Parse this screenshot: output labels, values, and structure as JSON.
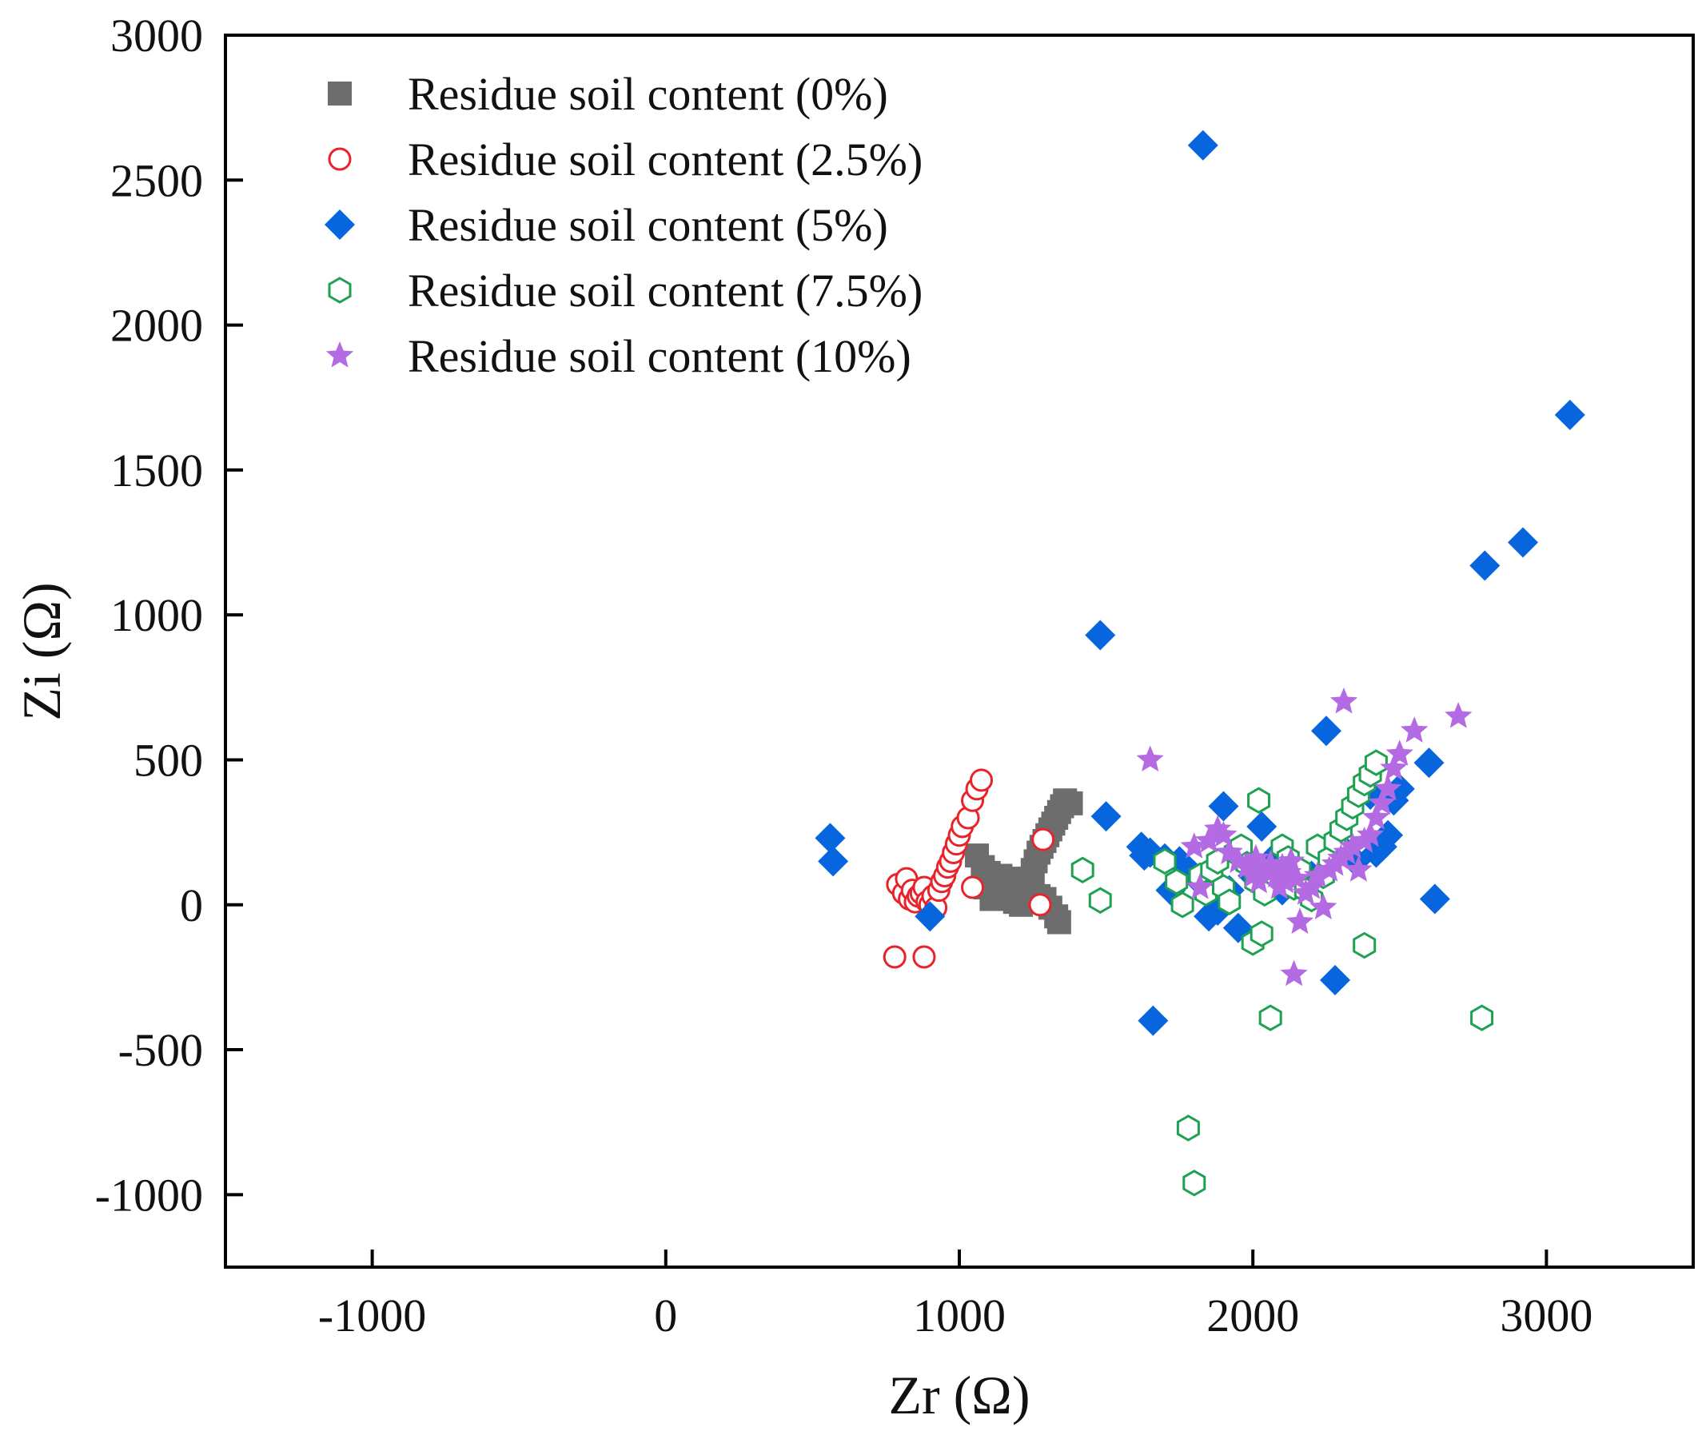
{
  "chart_data": {
    "type": "scatter",
    "title": "",
    "xlabel": "Zr (Ω)",
    "ylabel": "Zi (Ω)",
    "xlim": [
      -1500,
      3500
    ],
    "ylim": [
      -1250,
      3000
    ],
    "xticks": [
      -1000,
      0,
      1000,
      2000,
      3000
    ],
    "xtick_labels": [
      "-1000",
      "0",
      "1000",
      "2000",
      "3000"
    ],
    "yticks": [
      -1000,
      -500,
      0,
      500,
      1000,
      1500,
      2000,
      2500,
      3000
    ],
    "ytick_labels": [
      "-1000",
      "-500",
      "0",
      "500",
      "1000",
      "1500",
      "2000",
      "2500",
      "3000"
    ],
    "grid": false,
    "legend_position": "top-left",
    "series": [
      {
        "name": "Residue soil content (0%)",
        "marker": "square",
        "color": "#6d6d6d",
        "filled": true,
        "points": [
          [
            1060,
            170
          ],
          [
            1080,
            130
          ],
          [
            1100,
            110
          ],
          [
            1110,
            80
          ],
          [
            1120,
            60
          ],
          [
            1130,
            40
          ],
          [
            1150,
            30
          ],
          [
            1170,
            20
          ],
          [
            1190,
            10
          ],
          [
            1210,
            0
          ],
          [
            1220,
            30
          ],
          [
            1230,
            60
          ],
          [
            1240,
            90
          ],
          [
            1250,
            120
          ],
          [
            1260,
            150
          ],
          [
            1270,
            180
          ],
          [
            1280,
            200
          ],
          [
            1290,
            220
          ],
          [
            1300,
            240
          ],
          [
            1310,
            260
          ],
          [
            1320,
            280
          ],
          [
            1330,
            300
          ],
          [
            1340,
            320
          ],
          [
            1350,
            340
          ],
          [
            1360,
            360
          ],
          [
            1380,
            350
          ],
          [
            1250,
            40
          ],
          [
            1270,
            30
          ],
          [
            1290,
            20
          ],
          [
            1310,
            -10
          ],
          [
            1330,
            -40
          ],
          [
            1340,
            -60
          ],
          [
            1090,
            60
          ],
          [
            1110,
            20
          ],
          [
            1180,
            50
          ],
          [
            1200,
            90
          ],
          [
            1140,
            100
          ]
        ]
      },
      {
        "name": "Residue soil content (2.5%)",
        "marker": "circle",
        "color": "#e8232b",
        "filled": false,
        "points": [
          [
            780,
            -180
          ],
          [
            880,
            -180
          ],
          [
            790,
            70
          ],
          [
            810,
            40
          ],
          [
            820,
            90
          ],
          [
            830,
            20
          ],
          [
            840,
            50
          ],
          [
            850,
            10
          ],
          [
            860,
            30
          ],
          [
            870,
            40
          ],
          [
            880,
            60
          ],
          [
            890,
            10
          ],
          [
            900,
            0
          ],
          [
            910,
            30
          ],
          [
            920,
            -10
          ],
          [
            930,
            50
          ],
          [
            940,
            80
          ],
          [
            950,
            100
          ],
          [
            960,
            130
          ],
          [
            970,
            150
          ],
          [
            980,
            180
          ],
          [
            990,
            210
          ],
          [
            1000,
            240
          ],
          [
            1010,
            270
          ],
          [
            1030,
            300
          ],
          [
            1045,
            360
          ],
          [
            1060,
            400
          ],
          [
            1075,
            430
          ],
          [
            1045,
            60
          ],
          [
            1275,
            0
          ],
          [
            1285,
            225
          ]
        ]
      },
      {
        "name": "Residue soil content (5%)",
        "marker": "diamond",
        "color": "#0766dd",
        "filled": true,
        "points": [
          [
            560,
            230
          ],
          [
            570,
            150
          ],
          [
            900,
            -40
          ],
          [
            1480,
            930
          ],
          [
            1500,
            305
          ],
          [
            1620,
            200
          ],
          [
            1630,
            170
          ],
          [
            1650,
            180
          ],
          [
            1660,
            -400
          ],
          [
            1700,
            160
          ],
          [
            1720,
            50
          ],
          [
            1750,
            150
          ],
          [
            1800,
            100
          ],
          [
            1830,
            2620
          ],
          [
            1850,
            -40
          ],
          [
            1880,
            -20
          ],
          [
            1900,
            340
          ],
          [
            1920,
            50
          ],
          [
            1950,
            -80
          ],
          [
            2000,
            100
          ],
          [
            2030,
            270
          ],
          [
            2060,
            150
          ],
          [
            2100,
            50
          ],
          [
            2150,
            80
          ],
          [
            2200,
            100
          ],
          [
            2250,
            600
          ],
          [
            2280,
            -260
          ],
          [
            2300,
            200
          ],
          [
            2350,
            150
          ],
          [
            2400,
            380
          ],
          [
            2420,
            180
          ],
          [
            2440,
            200
          ],
          [
            2460,
            240
          ],
          [
            2480,
            360
          ],
          [
            2500,
            400
          ],
          [
            2600,
            490
          ],
          [
            2620,
            20
          ],
          [
            2790,
            1170
          ],
          [
            2920,
            1250
          ],
          [
            3080,
            1690
          ]
        ]
      },
      {
        "name": "Residue soil content (7.5%)",
        "marker": "hexagon",
        "color": "#1ea153",
        "filled": false,
        "points": [
          [
            1420,
            120
          ],
          [
            1480,
            15
          ],
          [
            1700,
            150
          ],
          [
            1740,
            80
          ],
          [
            1760,
            0
          ],
          [
            1780,
            -770
          ],
          [
            1800,
            -960
          ],
          [
            1820,
            100
          ],
          [
            1840,
            40
          ],
          [
            1860,
            120
          ],
          [
            1880,
            150
          ],
          [
            1900,
            60
          ],
          [
            1920,
            10
          ],
          [
            1940,
            180
          ],
          [
            1960,
            200
          ],
          [
            1980,
            140
          ],
          [
            2000,
            -130
          ],
          [
            2010,
            80
          ],
          [
            2020,
            360
          ],
          [
            2030,
            -100
          ],
          [
            2040,
            40
          ],
          [
            2060,
            -390
          ],
          [
            2080,
            100
          ],
          [
            2100,
            200
          ],
          [
            2120,
            160
          ],
          [
            2140,
            60
          ],
          [
            2160,
            120
          ],
          [
            2180,
            50
          ],
          [
            2200,
            20
          ],
          [
            2220,
            200
          ],
          [
            2240,
            100
          ],
          [
            2260,
            160
          ],
          [
            2280,
            220
          ],
          [
            2300,
            260
          ],
          [
            2320,
            300
          ],
          [
            2340,
            340
          ],
          [
            2360,
            380
          ],
          [
            2380,
            420
          ],
          [
            2400,
            450
          ],
          [
            2420,
            490
          ],
          [
            2380,
            -140
          ],
          [
            2780,
            -390
          ]
        ]
      },
      {
        "name": "Residue soil content (10%)",
        "marker": "star",
        "color": "#b36ae2",
        "filled": true,
        "points": [
          [
            1650,
            500
          ],
          [
            1800,
            200
          ],
          [
            1820,
            60
          ],
          [
            1850,
            220
          ],
          [
            1880,
            260
          ],
          [
            1900,
            240
          ],
          [
            1920,
            180
          ],
          [
            1950,
            150
          ],
          [
            1980,
            130
          ],
          [
            2000,
            100
          ],
          [
            2010,
            160
          ],
          [
            2020,
            80
          ],
          [
            2040,
            120
          ],
          [
            2060,
            140
          ],
          [
            2080,
            100
          ],
          [
            2090,
            60
          ],
          [
            2100,
            130
          ],
          [
            2110,
            80
          ],
          [
            2120,
            110
          ],
          [
            2130,
            150
          ],
          [
            2140,
            -240
          ],
          [
            2150,
            90
          ],
          [
            2160,
            -60
          ],
          [
            2180,
            40
          ],
          [
            2200,
            60
          ],
          [
            2220,
            100
          ],
          [
            2240,
            -10
          ],
          [
            2260,
            120
          ],
          [
            2280,
            140
          ],
          [
            2300,
            160
          ],
          [
            2310,
            700
          ],
          [
            2320,
            180
          ],
          [
            2340,
            200
          ],
          [
            2360,
            120
          ],
          [
            2380,
            220
          ],
          [
            2400,
            240
          ],
          [
            2420,
            300
          ],
          [
            2440,
            350
          ],
          [
            2460,
            400
          ],
          [
            2480,
            470
          ],
          [
            2500,
            520
          ],
          [
            2550,
            600
          ],
          [
            2700,
            650
          ]
        ]
      }
    ]
  }
}
